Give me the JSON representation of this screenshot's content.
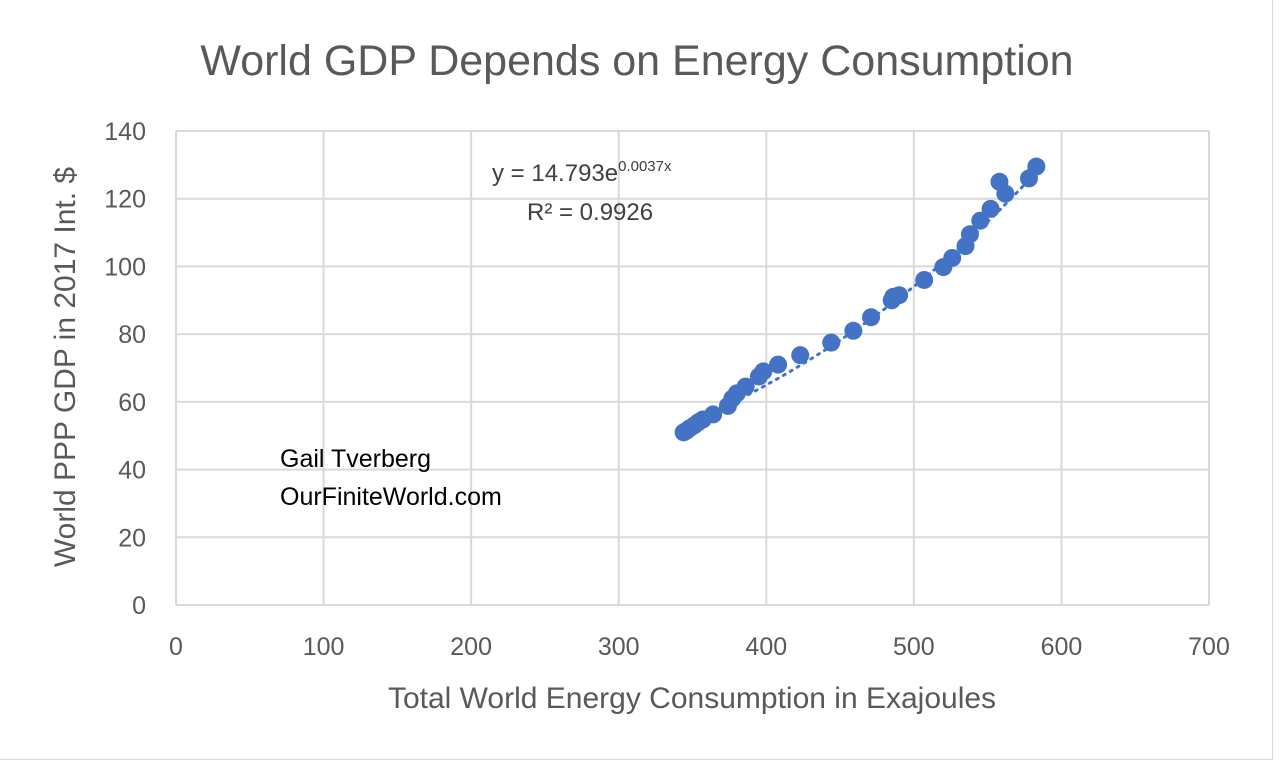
{
  "chart_data": {
    "type": "scatter",
    "title": "World GDP Depends on Energy Consumption",
    "xlabel": "Total World Energy Consumption in Exajoules",
    "ylabel": "World PPP GDP in 2017 Int. $",
    "xlim": [
      0,
      700
    ],
    "ylim": [
      0,
      140
    ],
    "x_ticks": [
      "0",
      "100",
      "200",
      "300",
      "400",
      "500",
      "600",
      "700"
    ],
    "y_ticks": [
      "0",
      "20",
      "40",
      "60",
      "80",
      "100",
      "120",
      "140"
    ],
    "grid": true,
    "legend": "none",
    "trendline": {
      "type": "exponential",
      "equation_main": "y = 14.793e",
      "equation_exponent": "0.0037x",
      "r_squared": "R² = 0.9926",
      "a": 14.793,
      "b": 0.0037
    },
    "annotation_lines": [
      "Gail Tverberg",
      "OurFiniteWorld.com"
    ],
    "series": [
      {
        "color": "#4472c4",
        "points": [
          [
            344,
            51
          ],
          [
            346,
            51.5
          ],
          [
            348,
            52.2
          ],
          [
            351,
            53
          ],
          [
            354,
            54
          ],
          [
            357,
            54.8
          ],
          [
            364,
            56.3
          ],
          [
            374,
            58.8
          ],
          [
            377,
            61
          ],
          [
            380,
            62.5
          ],
          [
            386,
            64.5
          ],
          [
            395,
            67.5
          ],
          [
            398,
            69
          ],
          [
            408,
            71
          ],
          [
            423,
            73.8
          ],
          [
            444,
            77.5
          ],
          [
            459,
            81
          ],
          [
            471,
            85
          ],
          [
            485,
            90
          ],
          [
            486,
            91
          ],
          [
            490,
            91.5
          ],
          [
            507,
            96
          ],
          [
            520,
            99.8
          ],
          [
            526,
            102.5
          ],
          [
            535,
            106
          ],
          [
            538,
            109.5
          ],
          [
            545,
            113.5
          ],
          [
            552,
            117
          ],
          [
            558,
            125
          ],
          [
            562,
            121.5
          ],
          [
            578,
            126
          ],
          [
            583,
            129.5
          ]
        ]
      }
    ]
  }
}
